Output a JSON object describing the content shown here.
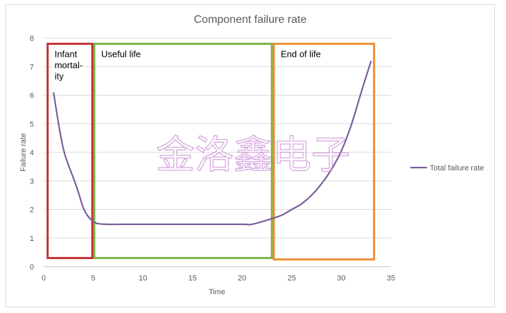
{
  "chart_data": {
    "type": "line",
    "title": "Component failure rate",
    "xlabel": "Time",
    "ylabel": "Failure rate",
    "xlim": [
      0,
      35
    ],
    "ylim": [
      0,
      8
    ],
    "xticks": [
      "0",
      "5",
      "10",
      "15",
      "20",
      "25",
      "30",
      "35"
    ],
    "yticks": [
      "0",
      "1",
      "2",
      "3",
      "4",
      "5",
      "6",
      "7",
      "8"
    ],
    "grid": true,
    "legend": "right",
    "series": [
      {
        "name": "Total failure rate",
        "color": "#7a5c9b",
        "x": [
          1,
          1.5,
          2,
          2.5,
          3,
          3.5,
          4,
          4.5,
          5,
          5.5,
          6.5,
          8,
          10,
          15,
          20,
          21,
          23,
          24,
          25,
          26,
          27,
          28,
          29,
          30,
          31,
          32,
          33
        ],
        "y": [
          6.1,
          5.0,
          4.1,
          3.55,
          3.1,
          2.6,
          2.05,
          1.75,
          1.58,
          1.5,
          1.48,
          1.48,
          1.48,
          1.48,
          1.48,
          1.48,
          1.68,
          1.8,
          2.0,
          2.2,
          2.5,
          2.9,
          3.4,
          4.05,
          4.95,
          6.1,
          7.2
        ]
      }
    ],
    "regions": [
      {
        "label_lines": [
          "Infant",
          "mortal-",
          "ity"
        ],
        "x0": 0.4,
        "x1": 4.9,
        "y0": 0.3,
        "y1": 7.8,
        "color": "#c0302f"
      },
      {
        "label_lines": [
          "Useful life"
        ],
        "x0": 5.1,
        "x1": 23.0,
        "y0": 0.3,
        "y1": 7.8,
        "color": "#7db247"
      },
      {
        "label_lines": [
          "End of life"
        ],
        "x0": 23.2,
        "x1": 33.3,
        "y0": 0.25,
        "y1": 7.8,
        "color": "#ed8f33"
      }
    ]
  },
  "watermark": {
    "text": "金洛鑫电子",
    "color": "#c889d2"
  },
  "colors": {
    "gridline": "#d9d9d9",
    "axis": "#bfbfbf",
    "text": "#595959"
  }
}
